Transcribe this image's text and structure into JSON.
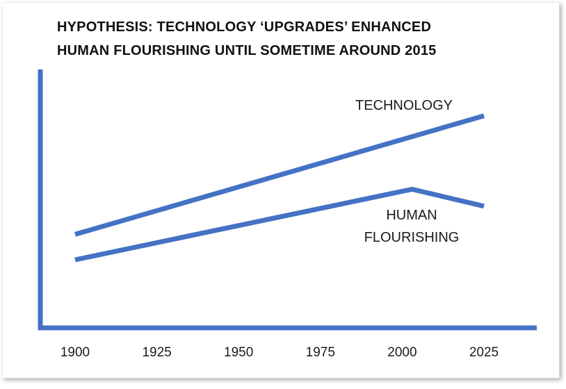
{
  "chart_data": {
    "type": "line",
    "title_lines": [
      "HYPOTHESIS:  TECHNOLOGY ‘UPGRADES’ ENHANCED",
      "HUMAN FLOURISHING UNTIL SOMETIME AROUND 2015"
    ],
    "xlabel": "",
    "ylabel": "",
    "x_ticks": [
      "1900",
      "1925",
      "1950",
      "1975",
      "2000",
      "2025"
    ],
    "xlim": [
      1890,
      2040
    ],
    "ylim": [
      0,
      100
    ],
    "y_ticks_shown": false,
    "grid": false,
    "line_color": "#4472c4",
    "series": [
      {
        "name": "TECHNOLOGY",
        "x": [
          1900,
          2025
        ],
        "y": [
          40,
          82
        ]
      },
      {
        "name": "HUMAN FLOURISHING",
        "label_lines": [
          "HUMAN",
          "FLOURISHING"
        ],
        "x": [
          1900,
          2003,
          2025
        ],
        "y": [
          31,
          56,
          50
        ]
      }
    ]
  }
}
